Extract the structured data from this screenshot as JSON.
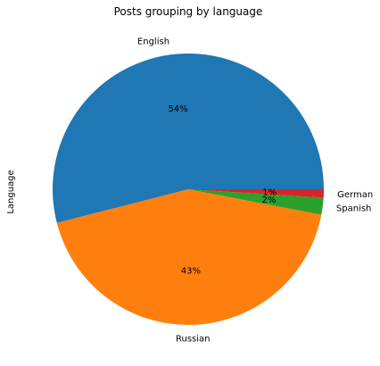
{
  "chart_data": {
    "type": "pie",
    "title": "Posts grouping by language",
    "ylabel": "Language",
    "xlabel": "",
    "slices": [
      {
        "label": "English",
        "value": 54,
        "pct_label": "54%",
        "color": "#1f77b4"
      },
      {
        "label": "Russian",
        "value": 43,
        "pct_label": "43%",
        "color": "#ff7f0e"
      },
      {
        "label": "Spanish",
        "value": 2,
        "pct_label": "2%",
        "color": "#2ca02c"
      },
      {
        "label": "German",
        "value": 1,
        "pct_label": "1%",
        "color": "#d62728"
      }
    ],
    "start_angle_deg": 0,
    "direction": "counterclockwise"
  }
}
